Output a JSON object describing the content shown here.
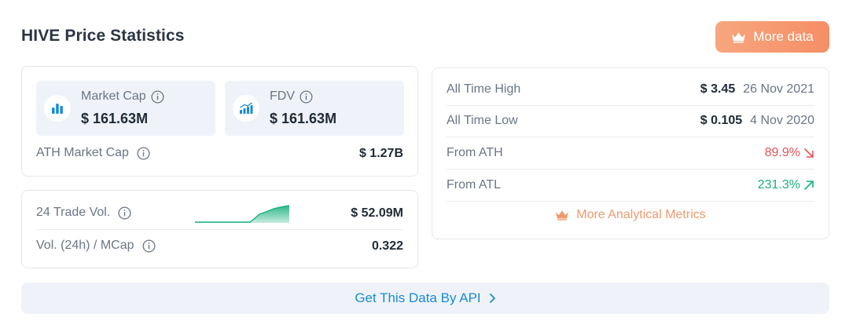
{
  "header": {
    "title": "HIVE Price Statistics",
    "more_data_label": "More data"
  },
  "market": {
    "market_cap": {
      "label": "Market Cap",
      "value": "$ 161.63M"
    },
    "fdv": {
      "label": "FDV",
      "value": "$ 161.63M"
    },
    "ath_market_cap": {
      "label": "ATH Market Cap",
      "value": "$ 1.27B"
    }
  },
  "volume": {
    "trade_vol": {
      "label": "24 Trade Vol.",
      "value": "$ 52.09M",
      "sparkline_trend": "up"
    },
    "vol_mcap": {
      "label": "Vol. (24h) / MCap",
      "value": "0.322"
    }
  },
  "history": {
    "ath": {
      "label": "All Time High",
      "price": "$ 3.45",
      "date": "26 Nov 2021"
    },
    "atl": {
      "label": "All Time Low",
      "price": "$ 0.105",
      "date": "4 Nov 2020"
    },
    "from_ath": {
      "label": "From ATH",
      "value": "89.9%",
      "direction": "down"
    },
    "from_atl": {
      "label": "From ATL",
      "value": "231.3%",
      "direction": "up"
    },
    "more_metrics_label": "More Analytical Metrics"
  },
  "api": {
    "label": "Get This Data By API"
  },
  "colors": {
    "accent_orange": "#f68e66",
    "link_blue": "#1a8bd6",
    "negative_red": "#e05459",
    "positive_green": "#19b07d"
  }
}
